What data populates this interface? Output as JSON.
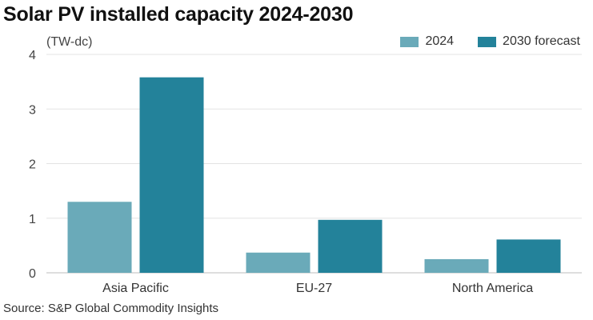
{
  "chart_data": {
    "type": "bar",
    "title": "Solar PV installed capacity 2024-2030",
    "unit_label": "(TW-dc)",
    "source": "Source: S&P Global Commodity Insights",
    "categories": [
      "Asia Pacific",
      "EU-27",
      "North America"
    ],
    "series": [
      {
        "name": "2024",
        "color": "#6aaab9",
        "values": [
          1.3,
          0.37,
          0.25
        ]
      },
      {
        "name": "2030 forecast",
        "color": "#23829a",
        "values": [
          3.58,
          0.97,
          0.61
        ]
      }
    ],
    "ylim": [
      0,
      4
    ],
    "yticks": [
      "0",
      "1",
      "2",
      "3",
      "4"
    ],
    "grid": true,
    "legend_position": "top-right"
  }
}
